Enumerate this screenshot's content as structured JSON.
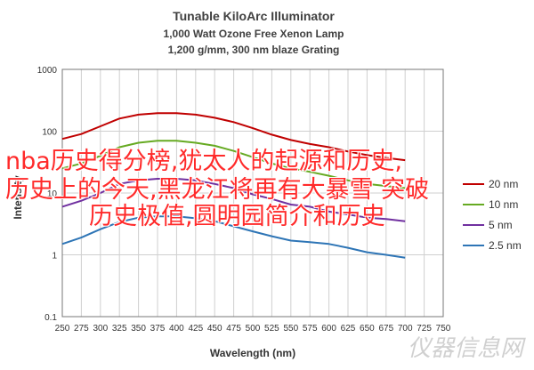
{
  "chart_data": {
    "type": "line",
    "title": "Tunable KiloArc Illuminator",
    "subtitle_1": "1,000 Watt Ozone Free Xenon Lamp",
    "subtitle_2": "1,200 g/mm, 300 nm blaze Grating",
    "xlabel": "Wavelength (nm)",
    "ylabel": "Intensity",
    "xlim": [
      250,
      750
    ],
    "ylim": [
      0.1,
      1000
    ],
    "yscale": "log",
    "x_ticks": [
      250,
      275,
      300,
      325,
      350,
      375,
      400,
      425,
      450,
      475,
      500,
      525,
      550,
      575,
      600,
      625,
      650,
      675,
      700,
      725,
      750
    ],
    "y_ticks": [
      {
        "v": 0.1,
        "label": "0.1"
      },
      {
        "v": 1,
        "label": "1"
      },
      {
        "v": 10,
        "label": "10"
      },
      {
        "v": 100,
        "label": "100"
      },
      {
        "v": 1000,
        "label": "1000"
      }
    ],
    "grid": true,
    "legend": "right",
    "series": [
      {
        "name": "20 nm",
        "color": "#c00000",
        "x": [
          250,
          275,
          300,
          325,
          350,
          375,
          400,
          425,
          450,
          475,
          500,
          525,
          550,
          575,
          600,
          625,
          650,
          675,
          700
        ],
        "y": [
          75,
          90,
          120,
          160,
          185,
          195,
          195,
          185,
          165,
          140,
          112,
          88,
          72,
          62,
          55,
          47,
          41,
          37,
          34
        ]
      },
      {
        "name": "10 nm",
        "color": "#66aa22",
        "x": [
          250,
          275,
          300,
          325,
          350,
          375,
          400,
          425,
          450,
          475,
          500,
          525,
          550,
          575,
          600,
          625,
          650,
          675,
          700
        ],
        "y": [
          25,
          30,
          40,
          55,
          65,
          70,
          70,
          65,
          58,
          48,
          38,
          30,
          25,
          22,
          19,
          16,
          14,
          13,
          12
        ]
      },
      {
        "name": "5 nm",
        "color": "#7030a0",
        "x": [
          250,
          275,
          300,
          325,
          350,
          375,
          400,
          425,
          450,
          475,
          500,
          525,
          550,
          575,
          600,
          625,
          650,
          675,
          700
        ],
        "y": [
          6,
          7.5,
          10,
          14,
          16,
          17,
          17,
          16,
          14,
          12,
          9.5,
          8,
          6.5,
          6,
          5,
          4.5,
          4,
          3.8,
          3.5
        ]
      },
      {
        "name": "2.5 nm",
        "color": "#2e75b6",
        "x": [
          250,
          275,
          300,
          325,
          350,
          375,
          400,
          425,
          450,
          475,
          500,
          525,
          550,
          575,
          600,
          625,
          650,
          675,
          700
        ],
        "y": [
          1.5,
          1.9,
          2.6,
          3.4,
          4.0,
          4.2,
          4.2,
          3.9,
          3.5,
          2.9,
          2.4,
          2.0,
          1.7,
          1.6,
          1.5,
          1.3,
          1.1,
          1.0,
          0.9
        ]
      }
    ]
  },
  "overlay": {
    "line1": "nba历史得分榜,犹太人的起源和历史,",
    "line2": "历史上的今天,黑龙江将再有大暴雪 突破",
    "line3": "历史极值,圆明园简介和历史"
  },
  "watermark": "仪器信息网"
}
